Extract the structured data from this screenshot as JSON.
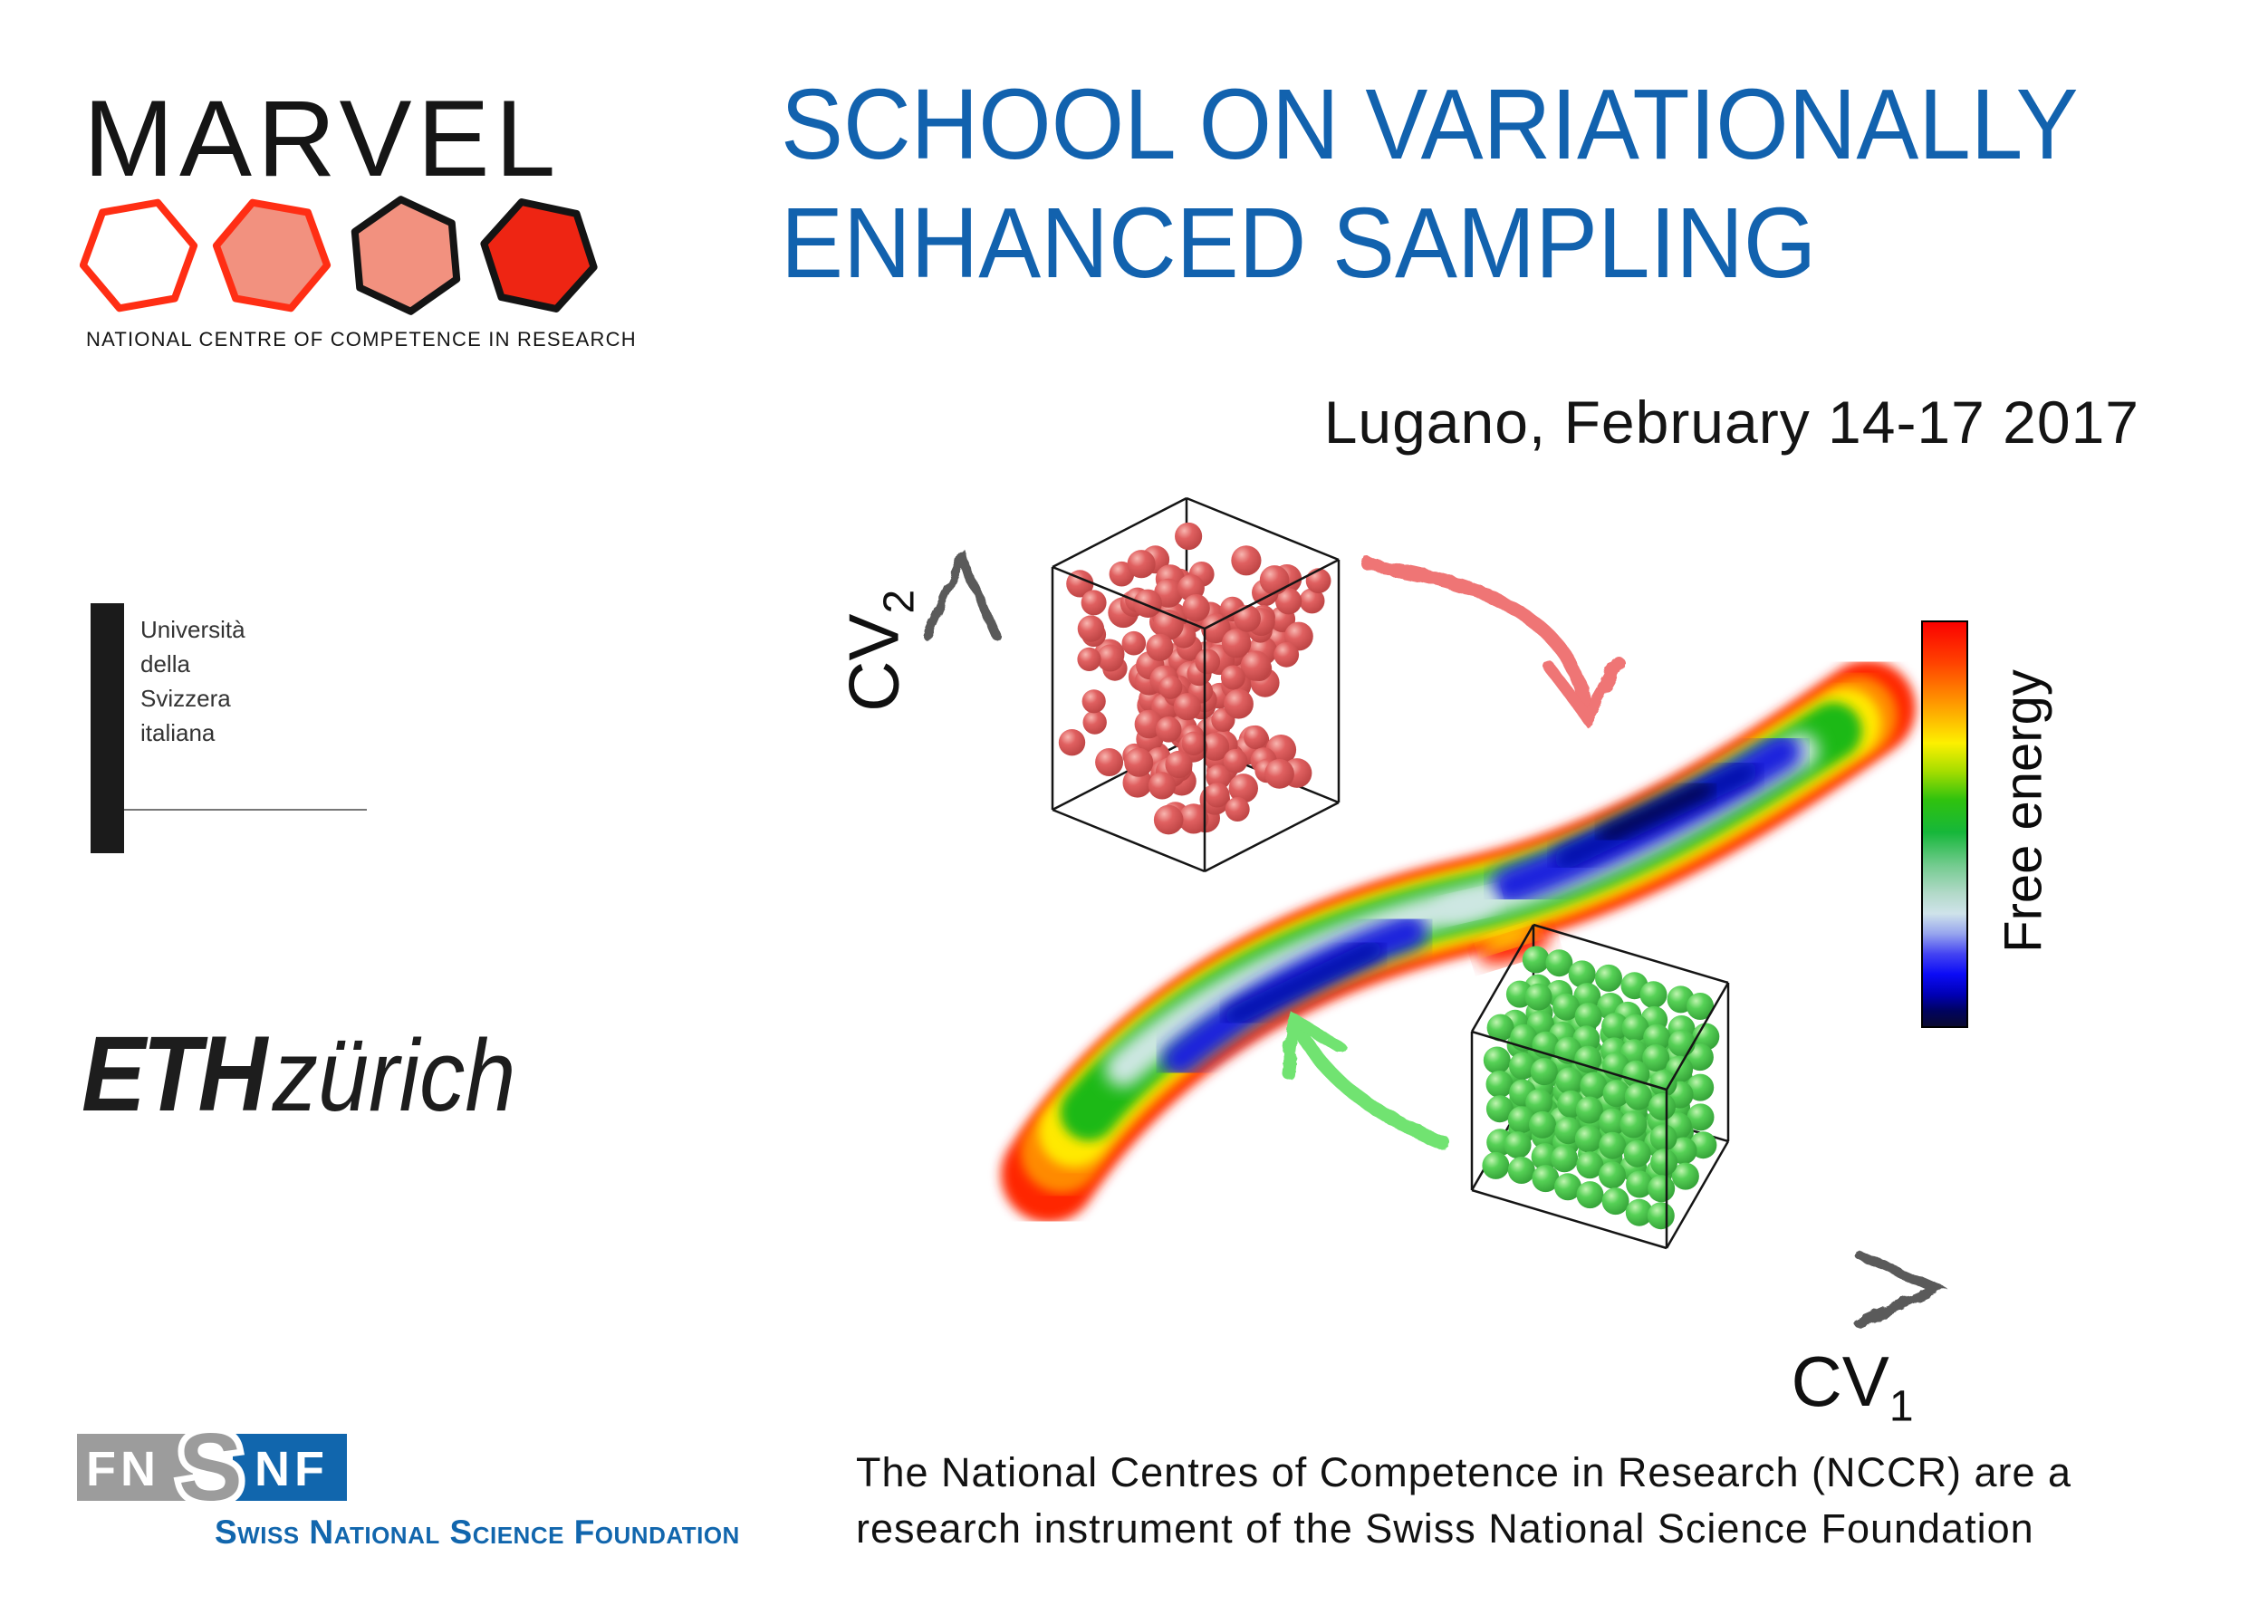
{
  "marvel": {
    "wordmark": "MARVEL",
    "tagline": "NATIONAL CENTRE OF COMPETENCE IN RESEARCH",
    "hexagons": [
      {
        "fill": "#ffffff",
        "stroke": "#ff2e14",
        "rotate": -10
      },
      {
        "fill": "#f2917f",
        "stroke": "#ff2e14",
        "rotate": 10
      },
      {
        "fill": "#f2917f",
        "stroke": "#141414",
        "rotate": 25
      },
      {
        "fill": "#ee2513",
        "stroke": "#141414",
        "rotate": 12
      }
    ]
  },
  "title": {
    "line1": "SCHOOL ON VARIATIONALLY",
    "line2": "ENHANCED SAMPLING",
    "color": "#1262ae"
  },
  "event": {
    "date_location": "Lugano, February 14-17 2017"
  },
  "figure": {
    "y_axis_label": {
      "base": "CV",
      "sub": "2"
    },
    "x_axis_label": {
      "base": "CV",
      "sub": "1"
    },
    "colorbar": {
      "label": "Free energy",
      "stops": [
        [
          0,
          "#fb0000"
        ],
        [
          0.1,
          "#ff4000"
        ],
        [
          0.2,
          "#ff9700"
        ],
        [
          0.3,
          "#fdf000"
        ],
        [
          0.37,
          "#a5dd00"
        ],
        [
          0.44,
          "#2fc20e"
        ],
        [
          0.52,
          "#16b73a"
        ],
        [
          0.6,
          "#72cb8e"
        ],
        [
          0.67,
          "#b2d9c8"
        ],
        [
          0.72,
          "#cfe3ea"
        ],
        [
          0.77,
          "#96a4ee"
        ],
        [
          0.82,
          "#4343f2"
        ],
        [
          0.87,
          "#0b0bf6"
        ],
        [
          0.92,
          "#0000b4"
        ],
        [
          0.96,
          "#00035f"
        ],
        [
          1,
          "#0a0a2e"
        ]
      ]
    },
    "band_colors": {
      "outer": "#ff2600",
      "orange": "#ff8a00",
      "yellow": "#ffe900",
      "green": "#1cb919",
      "pale": "#cde7e2",
      "blue": "#1b24dd",
      "navy": "#0008a8",
      "core": "#02032c"
    },
    "states": {
      "disordered_color": "#e06060",
      "ordered_color": "#56d156"
    },
    "arrow_colors": {
      "red": "#ef7474",
      "green": "#71e371"
    },
    "description": "Schematic two-basin free energy surface in CV1/CV2 space connecting a disordered (red) particle box and an ordered crystalline (green) particle box"
  },
  "sponsors": {
    "usi_lines": [
      "Università",
      "della",
      "Svizzera",
      "italiana"
    ],
    "eth": {
      "strong": "ETH",
      "light": "zürich"
    },
    "snsf": {
      "box1": "FN",
      "overlap": "S",
      "box2": "NF",
      "caption": "Swiss National Science Foundation",
      "gray": "#9c9c9c",
      "blue": "#1166ad"
    }
  },
  "footer": {
    "line1": "The National Centres of Competence in Research (NCCR) are a",
    "line2": "research instrument of the Swiss National Science Foundation"
  }
}
